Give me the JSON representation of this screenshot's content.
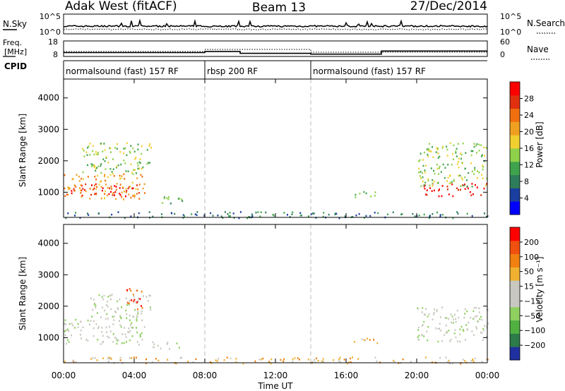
{
  "header": {
    "station": "Adak West (fitACF)",
    "beam": "Beam 13",
    "date": "27/Dec/2014"
  },
  "chart_data": [
    {
      "type": "line",
      "panel": "noise",
      "left_label": "N.Sky",
      "right_label": "N.Search",
      "left_ticks": [
        "10^5",
        "10^0"
      ],
      "right_ticks": [
        "10^5",
        "10^0"
      ],
      "y_scale": "log",
      "ylim": [
        1,
        100000
      ]
    },
    {
      "type": "line",
      "panel": "frequency",
      "left_label_lines": [
        "Freq.",
        "[MHz]"
      ],
      "right_label": "Nave",
      "left_ticks": [
        "18",
        "8"
      ],
      "right_ticks": [
        "60",
        "0"
      ],
      "ylim_left": [
        8,
        18
      ],
      "ylim_right": [
        0,
        60
      ],
      "freq_series": [
        {
          "x": [
            0,
            8
          ],
          "y": 10.5
        },
        {
          "x": [
            8,
            10
          ],
          "y": 11.2
        },
        {
          "x": [
            10,
            14
          ],
          "y": 10.0
        },
        {
          "x": [
            14,
            18
          ],
          "y": 9.5
        },
        {
          "x": [
            18,
            24
          ],
          "y": 11.5
        }
      ]
    },
    {
      "type": "table",
      "panel": "cpid",
      "label": "CPID",
      "segments": [
        {
          "start": 0,
          "end": 8,
          "label": "normalsound (fast) 157 RF"
        },
        {
          "start": 8,
          "end": 14,
          "label": "rbsp 200 RF"
        },
        {
          "start": 14,
          "end": 24,
          "label": "normalsound (fast) 157 RF"
        }
      ]
    },
    {
      "type": "heatmap",
      "panel": "power",
      "ylabel": "Slant Range [km]",
      "ylim": [
        200,
        4600
      ],
      "yticks": [
        1000,
        2000,
        3000,
        4000
      ],
      "xlim": [
        0,
        24
      ],
      "colorbar_label": "Power [dB]",
      "colorbar_ticks": [
        "4",
        "8",
        "12",
        "16",
        "20",
        "24",
        "28"
      ],
      "colorbar_colors": [
        "#0000ff",
        "#1a3fa0",
        "#2e7d5a",
        "#3fa34d",
        "#8fd14a",
        "#f0d030",
        "#f0a020",
        "#f07010",
        "#e03010",
        "#ff0000"
      ],
      "regions": [
        {
          "x0": 0.0,
          "x1": 4.3,
          "y0": 900,
          "y1": 1300,
          "level": 9
        },
        {
          "x0": 0.0,
          "x1": 4.6,
          "y0": 800,
          "y1": 1600,
          "level": 6
        },
        {
          "x0": 1.0,
          "x1": 5.0,
          "y0": 1600,
          "y1": 2600,
          "level": 4
        },
        {
          "x0": 5.0,
          "x1": 6.8,
          "y0": 650,
          "y1": 900,
          "level": 3
        },
        {
          "x0": 16.3,
          "x1": 17.8,
          "y0": 850,
          "y1": 1050,
          "level": 3
        },
        {
          "x0": 20.3,
          "x1": 24.0,
          "y0": 900,
          "y1": 1300,
          "level": 9
        },
        {
          "x0": 20.0,
          "x1": 24.0,
          "y0": 1200,
          "y1": 2600,
          "level": 4
        },
        {
          "x0": 0.0,
          "x1": 24.0,
          "y0": 200,
          "y1": 400,
          "level": 2
        }
      ]
    },
    {
      "type": "heatmap",
      "panel": "velocity",
      "ylabel": "Slant Range [km]",
      "ylim": [
        200,
        4600
      ],
      "yticks": [
        1000,
        2000,
        3000,
        4000
      ],
      "xlim": [
        0,
        24
      ],
      "xticks": [
        "00:00",
        "04:00",
        "08:00",
        "12:00",
        "16:00",
        "20:00",
        "00:00"
      ],
      "xlabel": "Time UT",
      "colorbar_label": "Velocity [m s⁻¹]",
      "colorbar_ticks": [
        "200",
        "100",
        "50",
        "15",
        "−15",
        "−50",
        "−100",
        "−200"
      ],
      "colorbar_colors": [
        "#2030a0",
        "#2d7a4a",
        "#50b040",
        "#8fd060",
        "#c8c8c0",
        "#c8c8c0",
        "#f0b030",
        "#f08010",
        "#f05010",
        "#ff0000"
      ],
      "regions": [
        {
          "x0": 0.0,
          "x1": 4.6,
          "y0": 800,
          "y1": 1600,
          "level": 4
        },
        {
          "x0": 1.5,
          "x1": 5.0,
          "y0": 1600,
          "y1": 2400,
          "level": 4
        },
        {
          "x0": 3.5,
          "x1": 4.5,
          "y0": 1900,
          "y1": 2600,
          "level": 8
        },
        {
          "x0": 5.0,
          "x1": 6.8,
          "y0": 650,
          "y1": 900,
          "level": 4
        },
        {
          "x0": 16.3,
          "x1": 17.8,
          "y0": 850,
          "y1": 1050,
          "level": 6
        },
        {
          "x0": 20.0,
          "x1": 24.0,
          "y0": 900,
          "y1": 2000,
          "level": 4
        },
        {
          "x0": 0.0,
          "x1": 24.0,
          "y0": 200,
          "y1": 400,
          "level": 6
        }
      ]
    }
  ]
}
